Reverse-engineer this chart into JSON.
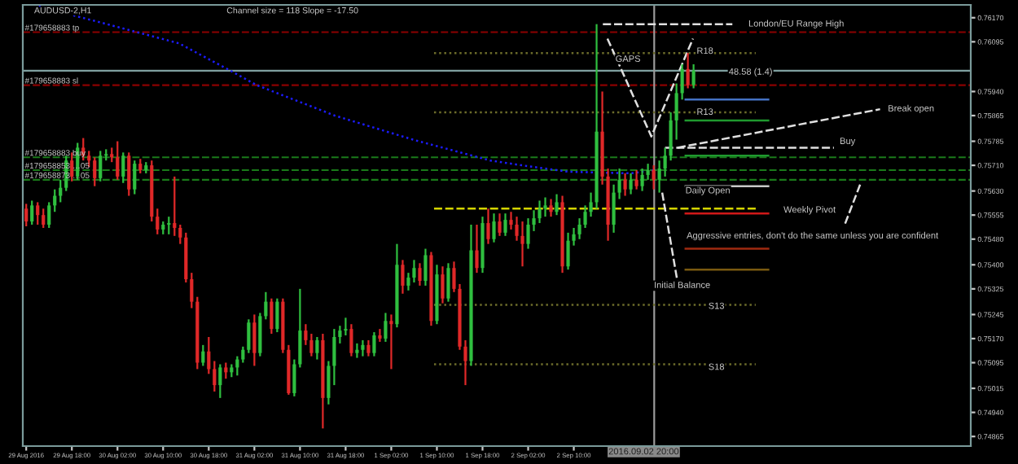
{
  "chart_data": {
    "type": "candlestick",
    "title": "AUDUSD-2,H1",
    "subtitle": "Channel size = 118 Slope = -17.50",
    "x": [
      "2016-08-29T10:00",
      "2016-08-29T11:00",
      "2016-08-29T12:00",
      "2016-08-29T13:00",
      "2016-08-29T14:00",
      "2016-08-29T15:00",
      "2016-08-29T16:00",
      "2016-08-29T17:00",
      "2016-08-29T18:00",
      "2016-08-29T19:00",
      "2016-08-29T20:00",
      "2016-08-29T21:00",
      "2016-08-29T22:00",
      "2016-08-29T23:00",
      "2016-08-30T00:00",
      "2016-08-30T01:00",
      "2016-08-30T02:00",
      "2016-08-30T03:00",
      "2016-08-30T04:00",
      "2016-08-30T05:00",
      "2016-08-30T06:00",
      "2016-08-30T07:00",
      "2016-08-30T08:00",
      "2016-08-30T09:00",
      "2016-08-30T10:00",
      "2016-08-30T11:00",
      "2016-08-30T12:00",
      "2016-08-30T13:00",
      "2016-08-30T14:00",
      "2016-08-30T15:00",
      "2016-08-30T16:00",
      "2016-08-30T17:00",
      "2016-08-30T18:00",
      "2016-08-30T19:00",
      "2016-08-30T20:00",
      "2016-08-30T21:00",
      "2016-08-30T22:00",
      "2016-08-30T23:00",
      "2016-08-31T00:00",
      "2016-08-31T01:00",
      "2016-08-31T02:00",
      "2016-08-31T03:00",
      "2016-08-31T04:00",
      "2016-08-31T05:00",
      "2016-08-31T06:00",
      "2016-08-31T07:00",
      "2016-08-31T08:00",
      "2016-08-31T09:00",
      "2016-08-31T10:00",
      "2016-08-31T11:00",
      "2016-08-31T12:00",
      "2016-08-31T13:00",
      "2016-08-31T14:00",
      "2016-08-31T15:00",
      "2016-08-31T16:00",
      "2016-08-31T17:00",
      "2016-08-31T18:00",
      "2016-08-31T19:00",
      "2016-08-31T20:00",
      "2016-08-31T21:00",
      "2016-08-31T22:00",
      "2016-08-31T23:00",
      "2016-09-01T00:00",
      "2016-09-01T01:00",
      "2016-09-01T02:00",
      "2016-09-01T03:00",
      "2016-09-01T04:00",
      "2016-09-01T05:00",
      "2016-09-01T06:00",
      "2016-09-01T07:00",
      "2016-09-01T08:00",
      "2016-09-01T09:00",
      "2016-09-01T10:00",
      "2016-09-01T11:00",
      "2016-09-01T12:00",
      "2016-09-01T13:00",
      "2016-09-01T14:00",
      "2016-09-01T15:00",
      "2016-09-01T16:00",
      "2016-09-01T17:00",
      "2016-09-01T18:00",
      "2016-09-01T19:00",
      "2016-09-01T20:00",
      "2016-09-01T21:00",
      "2016-09-01T22:00",
      "2016-09-01T23:00",
      "2016-09-02T00:00",
      "2016-09-02T01:00",
      "2016-09-02T02:00",
      "2016-09-02T03:00",
      "2016-09-02T04:00",
      "2016-09-02T05:00",
      "2016-09-02T06:00",
      "2016-09-02T07:00",
      "2016-09-02T08:00",
      "2016-09-02T09:00",
      "2016-09-02T10:00",
      "2016-09-02T11:00",
      "2016-09-02T12:00",
      "2016-09-02T13:00",
      "2016-09-02T14:00",
      "2016-09-02T15:00",
      "2016-09-02T16:00",
      "2016-09-02T17:00",
      "2016-09-02T18:00",
      "2016-09-02T19:00",
      "2016-09-02T20:00",
      "2016-09-02T21:00",
      "2016-09-02T22:00",
      "2016-09-02T23:00",
      "2016-09-03T00:00",
      "2016-09-03T01:00",
      "2016-09-03T02:00",
      "2016-09-03T03:00",
      "2016-09-03T04:00",
      "2016-09-03T05:00",
      "2016-09-03T06:00",
      "2016-09-03T07:00"
    ],
    "ohlc": [
      [
        0.75575,
        0.7559,
        0.7552,
        0.75535
      ],
      [
        0.75535,
        0.756,
        0.75525,
        0.75585
      ],
      [
        0.75585,
        0.75595,
        0.75525,
        0.75555
      ],
      [
        0.75555,
        0.75575,
        0.75515,
        0.75525
      ],
      [
        0.75525,
        0.75595,
        0.75515,
        0.75585
      ],
      [
        0.75585,
        0.75635,
        0.75565,
        0.75615
      ],
      [
        0.75615,
        0.75665,
        0.75595,
        0.7564
      ],
      [
        0.7564,
        0.7574,
        0.7563,
        0.75725
      ],
      [
        0.75725,
        0.7575,
        0.7566,
        0.75675
      ],
      [
        0.75675,
        0.7578,
        0.75665,
        0.75765
      ],
      [
        0.75765,
        0.75795,
        0.75725,
        0.7574
      ],
      [
        0.7574,
        0.75755,
        0.75705,
        0.75725
      ],
      [
        0.75725,
        0.75735,
        0.75645,
        0.7567
      ],
      [
        0.7567,
        0.75755,
        0.7566,
        0.7574
      ],
      [
        0.7574,
        0.7576,
        0.75725,
        0.75745
      ],
      [
        0.75745,
        0.75765,
        0.7572,
        0.75735
      ],
      [
        0.75735,
        0.75785,
        0.75665,
        0.75675
      ],
      [
        0.75675,
        0.7575,
        0.75655,
        0.7574
      ],
      [
        0.7574,
        0.7575,
        0.75615,
        0.75635
      ],
      [
        0.75635,
        0.75725,
        0.7562,
        0.75715
      ],
      [
        0.75715,
        0.7573,
        0.75685,
        0.75695
      ],
      [
        0.75695,
        0.7572,
        0.75685,
        0.7571
      ],
      [
        0.7571,
        0.75725,
        0.75535,
        0.7555
      ],
      [
        0.7555,
        0.75575,
        0.75495,
        0.7551
      ],
      [
        0.7551,
        0.75535,
        0.75495,
        0.75525
      ],
      [
        0.75525,
        0.7555,
        0.75495,
        0.7553
      ],
      [
        0.7553,
        0.75675,
        0.7549,
        0.75515
      ],
      [
        0.75515,
        0.75525,
        0.75465,
        0.75485
      ],
      [
        0.75485,
        0.755,
        0.75345,
        0.75355
      ],
      [
        0.75355,
        0.75375,
        0.75265,
        0.75285
      ],
      [
        0.75285,
        0.753,
        0.75075,
        0.75095
      ],
      [
        0.75095,
        0.7515,
        0.75085,
        0.7513
      ],
      [
        0.7513,
        0.75175,
        0.7506,
        0.75075
      ],
      [
        0.75075,
        0.751,
        0.75005,
        0.75025
      ],
      [
        0.75025,
        0.7509,
        0.74985,
        0.7508
      ],
      [
        0.7508,
        0.75095,
        0.75045,
        0.75065
      ],
      [
        0.75065,
        0.7509,
        0.7505,
        0.7508
      ],
      [
        0.7508,
        0.75115,
        0.75055,
        0.75105
      ],
      [
        0.75105,
        0.75145,
        0.75095,
        0.75135
      ],
      [
        0.75135,
        0.7523,
        0.75125,
        0.7522
      ],
      [
        0.7522,
        0.75245,
        0.75085,
        0.75125
      ],
      [
        0.75125,
        0.7525,
        0.75115,
        0.7524
      ],
      [
        0.7524,
        0.75315,
        0.7523,
        0.75285
      ],
      [
        0.75285,
        0.75295,
        0.75185,
        0.752
      ],
      [
        0.752,
        0.75295,
        0.7519,
        0.75285
      ],
      [
        0.75285,
        0.75295,
        0.75125,
        0.75135
      ],
      [
        0.75135,
        0.7515,
        0.74995,
        0.75
      ],
      [
        0.75,
        0.75105,
        0.7499,
        0.7509
      ],
      [
        0.7509,
        0.75325,
        0.7508,
        0.75195
      ],
      [
        0.75195,
        0.75215,
        0.7515,
        0.75165
      ],
      [
        0.75165,
        0.75185,
        0.75115,
        0.75125
      ],
      [
        0.75125,
        0.75175,
        0.75105,
        0.75165
      ],
      [
        0.75165,
        0.75185,
        0.7489,
        0.74985
      ],
      [
        0.74985,
        0.751,
        0.74965,
        0.75085
      ],
      [
        0.75085,
        0.752,
        0.75025,
        0.75175
      ],
      [
        0.75175,
        0.7521,
        0.75155,
        0.75195
      ],
      [
        0.75195,
        0.75235,
        0.7518,
        0.752
      ],
      [
        0.752,
        0.75215,
        0.75115,
        0.75125
      ],
      [
        0.75125,
        0.75155,
        0.7511,
        0.75135
      ],
      [
        0.75135,
        0.75165,
        0.75115,
        0.7515
      ],
      [
        0.7515,
        0.75165,
        0.75115,
        0.75125
      ],
      [
        0.75125,
        0.7519,
        0.75115,
        0.7518
      ],
      [
        0.7518,
        0.752,
        0.7516,
        0.7517
      ],
      [
        0.7517,
        0.7525,
        0.7516,
        0.75225
      ],
      [
        0.75225,
        0.75245,
        0.75075,
        0.75215
      ],
      [
        0.75215,
        0.75465,
        0.75205,
        0.754
      ],
      [
        0.754,
        0.75415,
        0.7531,
        0.75335
      ],
      [
        0.75335,
        0.75375,
        0.7532,
        0.7536
      ],
      [
        0.7536,
        0.75415,
        0.75345,
        0.7539
      ],
      [
        0.7539,
        0.75405,
        0.75335,
        0.7535
      ],
      [
        0.7535,
        0.7545,
        0.75335,
        0.7543
      ],
      [
        0.7543,
        0.7544,
        0.7521,
        0.75225
      ],
      [
        0.75225,
        0.754,
        0.75215,
        0.7537
      ],
      [
        0.7537,
        0.75395,
        0.7528,
        0.75295
      ],
      [
        0.75295,
        0.75405,
        0.75285,
        0.7539
      ],
      [
        0.7539,
        0.7541,
        0.75315,
        0.75325
      ],
      [
        0.75325,
        0.7534,
        0.75135,
        0.75145
      ],
      [
        0.75145,
        0.75165,
        0.75025,
        0.751
      ],
      [
        0.751,
        0.75525,
        0.75085,
        0.75445
      ],
      [
        0.75445,
        0.75525,
        0.75375,
        0.7539
      ],
      [
        0.7539,
        0.7555,
        0.75375,
        0.7553
      ],
      [
        0.7553,
        0.75575,
        0.75465,
        0.7548
      ],
      [
        0.7548,
        0.7556,
        0.7547,
        0.75535
      ],
      [
        0.75535,
        0.7556,
        0.7549,
        0.755
      ],
      [
        0.755,
        0.7556,
        0.7549,
        0.7554
      ],
      [
        0.7554,
        0.75565,
        0.7551,
        0.75525
      ],
      [
        0.75525,
        0.7555,
        0.75475,
        0.7549
      ],
      [
        0.7549,
        0.75535,
        0.75395,
        0.75465
      ],
      [
        0.75465,
        0.75545,
        0.7545,
        0.75525
      ],
      [
        0.75525,
        0.7557,
        0.75505,
        0.75545
      ],
      [
        0.75545,
        0.756,
        0.7553,
        0.75575
      ],
      [
        0.75575,
        0.7561,
        0.7555,
        0.75585
      ],
      [
        0.75585,
        0.75605,
        0.7555,
        0.75565
      ],
      [
        0.75565,
        0.7562,
        0.75555,
        0.75595
      ],
      [
        0.75595,
        0.75615,
        0.75375,
        0.75395
      ],
      [
        0.75395,
        0.755,
        0.75385,
        0.75475
      ],
      [
        0.75475,
        0.75515,
        0.7546,
        0.75495
      ],
      [
        0.75495,
        0.75545,
        0.7548,
        0.75525
      ],
      [
        0.75525,
        0.75585,
        0.75515,
        0.75565
      ],
      [
        0.75565,
        0.75625,
        0.7555,
        0.75595
      ],
      [
        0.75595,
        0.7615,
        0.75575,
        0.75815
      ],
      [
        0.75815,
        0.7594,
        0.7565,
        0.75675
      ],
      [
        0.75675,
        0.757,
        0.75475,
        0.75525
      ],
      [
        0.75525,
        0.7565,
        0.755,
        0.75625
      ],
      [
        0.75625,
        0.757,
        0.75605,
        0.75665
      ],
      [
        0.75665,
        0.75685,
        0.75615,
        0.75635
      ],
      [
        0.75635,
        0.75685,
        0.7562,
        0.75665
      ],
      [
        0.75665,
        0.75695,
        0.75635,
        0.75645
      ],
      [
        0.75645,
        0.757,
        0.7563,
        0.7568
      ],
      [
        0.7568,
        0.75715,
        0.75665,
        0.75695
      ],
      [
        0.75695,
        0.7571,
        0.75635,
        0.75665
      ],
      [
        0.75665,
        0.75725,
        0.75625,
        0.757
      ],
      [
        0.757,
        0.75765,
        0.75675,
        0.7574
      ],
      [
        0.7574,
        0.75875,
        0.75725,
        0.7585
      ],
      [
        0.7585,
        0.75965,
        0.7579,
        0.75935
      ],
      [
        0.75935,
        0.76025,
        0.75915,
        0.7601
      ],
      [
        0.7601,
        0.7606,
        0.7595,
        0.7596
      ],
      [
        0.7596,
        0.76025,
        0.7595,
        0.76005
      ]
    ],
    "series": [
      {
        "type": "line",
        "color": "#1c1cff",
        "line_style": "dotted",
        "x": [
          "2016-08-29T12:12",
          "2016-08-29T23:06",
          "2016-08-30T12:48",
          "2016-08-30T21:48",
          "2016-08-31T02:24",
          "2016-08-31T16:06",
          "2016-09-01T05:48",
          "2016-09-01T19:24",
          "2016-09-02T00:54",
          "2016-09-02T09:06",
          "2016-09-02T20:00",
          "2016-09-03T00:06"
        ],
        "values": [
          0.76205,
          0.76155,
          0.7609,
          0.76005,
          0.7596,
          0.75865,
          0.7579,
          0.75725,
          0.7571,
          0.7569,
          0.75685,
          0.75695
        ]
      },
      {
        "type": "line",
        "color": "#6b6b2a",
        "line_style": "dotted",
        "x": [
          "2016-09-01T09:30",
          "2016-09-03T17:54"
        ],
        "values": [
          0.7606,
          0.7606
        ]
      },
      {
        "type": "line",
        "color": "#6b6b2a",
        "line_style": "dotted",
        "x": [
          "2016-09-01T09:30",
          "2016-09-03T17:54"
        ],
        "values": [
          0.75875,
          0.75875
        ]
      },
      {
        "type": "line",
        "color": "#6b6b2a",
        "line_style": "dotted",
        "x": [
          "2016-09-01T09:30",
          "2016-09-03T17:54"
        ],
        "values": [
          0.75275,
          0.75275
        ]
      },
      {
        "type": "line",
        "color": "#6b6b2a",
        "line_style": "dotted",
        "x": [
          "2016-09-01T09:30",
          "2016-09-03T17:54"
        ],
        "values": [
          0.7509,
          0.7509
        ]
      },
      {
        "type": "line",
        "color": "#d4d400",
        "line_style": "dashed",
        "x": [
          "2016-09-01T09:30",
          "2016-09-03T17:54"
        ],
        "values": [
          0.75575,
          0.75575
        ]
      },
      {
        "type": "line",
        "color": "#4472c4",
        "line_style": "solid",
        "x": [
          "2016-09-03T05:36",
          "2016-09-03T20:06"
        ],
        "values": [
          0.75915,
          0.75915
        ]
      },
      {
        "type": "line",
        "color": "#1f9a2f",
        "line_style": "solid",
        "x": [
          "2016-09-03T05:36",
          "2016-09-03T20:06"
        ],
        "values": [
          0.7585,
          0.7585
        ]
      },
      {
        "type": "line",
        "color": "#1f9a2f",
        "line_style": "solid",
        "x": [
          "2016-09-03T05:36",
          "2016-09-03T20:06"
        ],
        "values": [
          0.7574,
          0.7574
        ]
      },
      {
        "type": "line",
        "color": "#c8c8c8",
        "line_style": "solid",
        "x": [
          "2016-09-03T05:36",
          "2016-09-03T20:06"
        ],
        "values": [
          0.75645,
          0.75645
        ]
      },
      {
        "type": "line",
        "color": "#d01818",
        "line_style": "solid",
        "x": [
          "2016-09-03T05:36",
          "2016-09-03T20:06"
        ],
        "values": [
          0.7556,
          0.7556
        ]
      },
      {
        "type": "line",
        "color": "#a02a10",
        "line_style": "solid",
        "x": [
          "2016-09-03T05:36",
          "2016-09-03T20:06"
        ],
        "values": [
          0.7545,
          0.7545
        ]
      },
      {
        "type": "line",
        "color": "#7a5a10",
        "line_style": "solid",
        "x": [
          "2016-09-03T05:36",
          "2016-09-03T20:06"
        ],
        "values": [
          0.75385,
          0.75385
        ]
      },
      {
        "type": "line",
        "color": "#e0e0e0",
        "line_style": "dashed",
        "x": [
          "2016-09-02T15:06",
          "2016-09-03T13:48"
        ],
        "values": [
          0.7615,
          0.7615
        ]
      },
      {
        "type": "line",
        "color": "#e0e0e0",
        "line_style": "dashed",
        "x": [
          "2016-09-02T15:54",
          "2016-09-02T23:36",
          "2016-09-03T06:54"
        ],
        "values": [
          0.76105,
          0.758,
          0.76105
        ]
      },
      {
        "type": "line",
        "color": "#e0e0e0",
        "line_style": "dashed",
        "x": [
          "2016-09-03T04:12",
          "2016-09-04T15:42"
        ],
        "values": [
          0.75765,
          0.75885
        ]
      },
      {
        "type": "line",
        "color": "#e0e0e0",
        "line_style": "dashed",
        "x": [
          "2016-09-03T02:00",
          "2016-09-04T07:36"
        ],
        "values": [
          0.75765,
          0.75765
        ]
      },
      {
        "type": "line",
        "color": "#e0e0e0",
        "line_style": "dashed",
        "x": [
          "2016-09-04T12:12",
          "2016-09-04T09:30"
        ],
        "values": [
          0.7565,
          0.75525
        ]
      },
      {
        "type": "line",
        "color": "#e0e0e0",
        "line_style": "dashed",
        "x": [
          "2016-09-03T01:30",
          "2016-09-03T04:12"
        ],
        "values": [
          0.75625,
          0.75345
        ]
      }
    ],
    "ref_lines": [
      {
        "axis": "y",
        "value": 0.76125,
        "label": "#179658883 tp",
        "color": "#8b0000",
        "line_style": "dashed"
      },
      {
        "axis": "y",
        "value": 0.7596,
        "label": "#179658883 sl",
        "color": "#8b0000",
        "line_style": "dashed"
      },
      {
        "axis": "y",
        "value": 0.75735,
        "label": "#179658883 buy",
        "color": "#1a7a1a",
        "line_style": "dashed"
      },
      {
        "axis": "y",
        "value": 0.75695,
        "label": "#179658853 …05",
        "color": "#1a7a1a",
        "line_style": "dashed"
      },
      {
        "axis": "y",
        "value": 0.75665,
        "label": "#179658873 …05",
        "color": "#1a7a1a",
        "line_style": "dashed"
      },
      {
        "axis": "y",
        "value": 0.76005,
        "color": "#7fa0a0",
        "line_style": "solid"
      },
      {
        "axis": "x",
        "value": "2016-09-03T00:06",
        "color": "#9a9a9a",
        "line_style": "solid"
      }
    ],
    "annotations": [
      {
        "text": "London/EU Range High",
        "x": "2016-09-04T01:00",
        "y": 0.7615
      },
      {
        "text": "GAPS",
        "x": "2016-09-02T19:30",
        "y": 0.7604
      },
      {
        "text": "R18",
        "x": "2016-09-03T09:00",
        "y": 0.76065
      },
      {
        "text": "48.58 (1.4)",
        "x": "2016-09-03T17:00",
        "y": 0.76
      },
      "Break open",
      {
        "text": "R13",
        "x": "2016-09-03T09:00",
        "y": 0.75875
      },
      "Buy",
      {
        "text": "Daily Open",
        "x": "2016-09-03T09:30",
        "y": 0.7563
      },
      "Weekly Pivot",
      "Aggressive entries, don't do the same unless you are confident",
      {
        "text": "Initial Balance",
        "x": "2016-09-03T05:00",
        "y": 0.75335
      },
      {
        "text": "S13",
        "x": "2016-09-03T11:00",
        "y": 0.7527
      },
      {
        "text": "S18",
        "x": "2016-09-03T11:00",
        "y": 0.7508
      },
      "2016.09.02 20:00"
    ],
    "xlim": [
      "2016-08-29T09:24",
      "2016-09-05T07:36"
    ],
    "xticks": [
      {
        "value": "2016-08-29T10:00",
        "label": "29 Aug 2016"
      },
      {
        "value": "2016-08-29T18:00",
        "label": "29 Aug 18:00"
      },
      {
        "value": "2016-08-30T02:00",
        "label": "30 Aug 02:00"
      },
      {
        "value": "2016-08-30T10:00",
        "label": "30 Aug 10:00"
      },
      {
        "value": "2016-08-30T18:00",
        "label": "30 Aug 18:00"
      },
      {
        "value": "2016-08-31T02:00",
        "label": "31 Aug 02:00"
      },
      {
        "value": "2016-08-31T10:00",
        "label": "31 Aug 10:00"
      },
      {
        "value": "2016-08-31T18:00",
        "label": "31 Aug 18:00"
      },
      {
        "value": "2016-09-01T02:00",
        "label": "1 Sep 02:00"
      },
      {
        "value": "2016-09-01T10:00",
        "label": "1 Sep 10:00"
      },
      {
        "value": "2016-09-01T18:00",
        "label": "1 Sep 18:00"
      },
      {
        "value": "2016-09-02T02:00",
        "label": "2 Sep 02:00"
      },
      {
        "value": "2016-09-02T10:00",
        "label": "2 Sep 10:00"
      }
    ],
    "ylim": [
      0.74835,
      0.7621
    ],
    "yticks": [
      {
        "value": 0.7617,
        "label": "0.76170"
      },
      {
        "value": 0.76095,
        "label": "0.76095"
      },
      {
        "value": 0.7594,
        "label": "0.75940"
      },
      {
        "value": 0.75865,
        "label": "0.75865"
      },
      {
        "value": 0.75785,
        "label": "0.75785"
      },
      {
        "value": 0.7571,
        "label": "0.75710"
      },
      {
        "value": 0.7563,
        "label": "0.75630"
      },
      {
        "value": 0.75555,
        "label": "0.75555"
      },
      {
        "value": 0.7548,
        "label": "0.75480"
      },
      {
        "value": 0.754,
        "label": "0.75400"
      },
      {
        "value": 0.75325,
        "label": "0.75325"
      },
      {
        "value": 0.75245,
        "label": "0.75245"
      },
      {
        "value": 0.7517,
        "label": "0.75170"
      },
      {
        "value": 0.75095,
        "label": "0.75095"
      },
      {
        "value": 0.75015,
        "label": "0.75015"
      },
      {
        "value": 0.7494,
        "label": "0.74940"
      },
      {
        "value": 0.74865,
        "label": "0.74865"
      }
    ],
    "grid": false,
    "legend": false
  }
}
